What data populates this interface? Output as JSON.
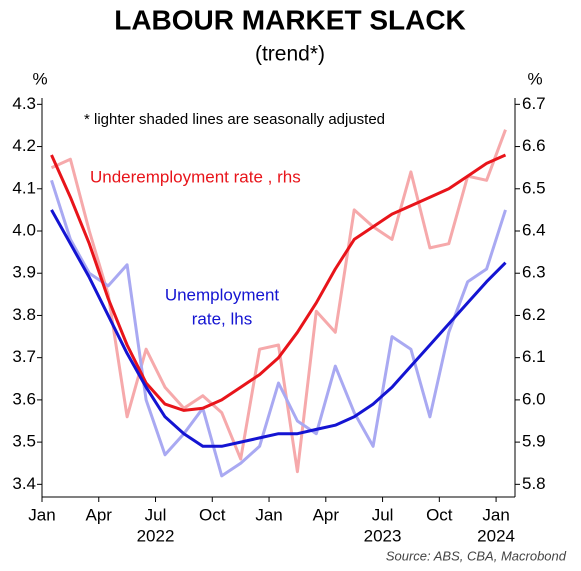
{
  "chart_data": {
    "type": "line",
    "title": "LABOUR MARKET SLACK",
    "subtitle": "(trend*)",
    "note": "*  lighter shaded lines are seasonally adjusted",
    "source": "Source: ABS, CBA, Macrobond",
    "y_unit": "%",
    "y2_unit": "%",
    "labels": {
      "underemployment": "Underemployment rate , rhs",
      "unemployment": [
        "Unemployment",
        "rate, lhs"
      ]
    },
    "categories": [
      "Jan",
      null,
      null,
      "Apr",
      null,
      null,
      "Jul",
      null,
      null,
      "Oct",
      null,
      null,
      "Jan",
      null,
      null,
      "Apr",
      null,
      null,
      "Jul",
      null,
      null,
      "Oct",
      null,
      null,
      "Jan"
    ],
    "years": [
      "2022",
      "2023",
      "2024"
    ],
    "ylim": [
      3.37,
      4.315
    ],
    "yticks": [
      3.4,
      3.5,
      3.6,
      3.7,
      3.8,
      3.9,
      {
        "value": 4,
        "label": "4.0"
      },
      4.1,
      4.2,
      4.3
    ],
    "y2lim": [
      5.77,
      6.715
    ],
    "y2ticks": [
      5.8,
      5.9,
      {
        "value": 6,
        "label": "6.0"
      },
      6.1,
      6.2,
      6.3,
      6.4,
      6.5,
      6.6,
      6.7
    ],
    "series": [
      {
        "color": "#f6a9ab",
        "axis": "y2",
        "values": [
          6.55,
          6.57,
          6.4,
          6.25,
          5.96,
          6.12,
          6.03,
          5.98,
          6.01,
          5.97,
          5.86,
          6.12,
          6.13,
          5.83,
          6.21,
          6.16,
          6.45,
          6.41,
          6.38,
          6.54,
          6.36,
          6.37,
          6.53,
          6.52,
          6.64
        ]
      },
      {
        "color": "#a9a9f2",
        "values": [
          4.12,
          3.98,
          3.9,
          3.87,
          3.92,
          3.6,
          3.47,
          3.52,
          3.58,
          3.42,
          3.45,
          3.49,
          3.64,
          3.55,
          3.52,
          3.68,
          3.57,
          3.49,
          3.75,
          3.72,
          3.56,
          3.76,
          3.88,
          3.91,
          4.05
        ]
      },
      {
        "color": "#e8141a",
        "axis": "y2",
        "values": [
          6.58,
          6.48,
          6.37,
          6.24,
          6.13,
          6.04,
          5.99,
          5.975,
          5.98,
          6.0,
          6.03,
          6.06,
          6.1,
          6.16,
          6.23,
          6.31,
          6.38,
          6.41,
          6.44,
          6.46,
          6.48,
          6.5,
          6.53,
          6.56,
          6.58
        ]
      },
      {
        "color": "#1414d2",
        "values": [
          4.05,
          3.97,
          3.89,
          3.8,
          3.71,
          3.63,
          3.56,
          3.52,
          3.49,
          3.49,
          3.5,
          3.51,
          3.52,
          3.52,
          3.53,
          3.54,
          3.56,
          3.59,
          3.63,
          3.68,
          3.73,
          3.78,
          3.83,
          3.88,
          3.925
        ]
      }
    ]
  }
}
